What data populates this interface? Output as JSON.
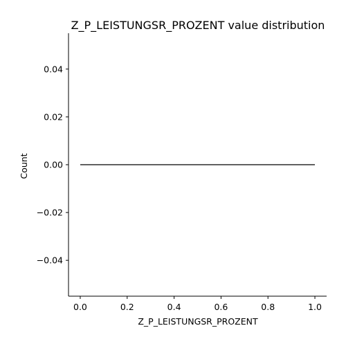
{
  "chart_data": {
    "type": "line",
    "title": "Z_P_LEISTUNGSR_PROZENT value distribution",
    "xlabel": "Z_P_LEISTUNGSR_PROZENT",
    "ylabel": "Count",
    "xlim": [
      -0.05,
      1.05
    ],
    "ylim": [
      -0.055,
      0.055
    ],
    "x_ticks": [
      0.0,
      0.2,
      0.4,
      0.6,
      0.8,
      1.0
    ],
    "x_tick_labels": [
      "0.0",
      "0.2",
      "0.4",
      "0.6",
      "0.8",
      "1.0"
    ],
    "y_ticks": [
      0.04,
      0.02,
      0.0,
      -0.02,
      -0.04
    ],
    "y_tick_labels": [
      "0.04",
      "0.02",
      "0.00",
      "−0.02",
      "−0.04"
    ],
    "grid": false,
    "series": [
      {
        "x": [
          0.0,
          1.0
        ],
        "y": [
          0.0,
          0.0
        ],
        "color": "#000000"
      }
    ]
  }
}
